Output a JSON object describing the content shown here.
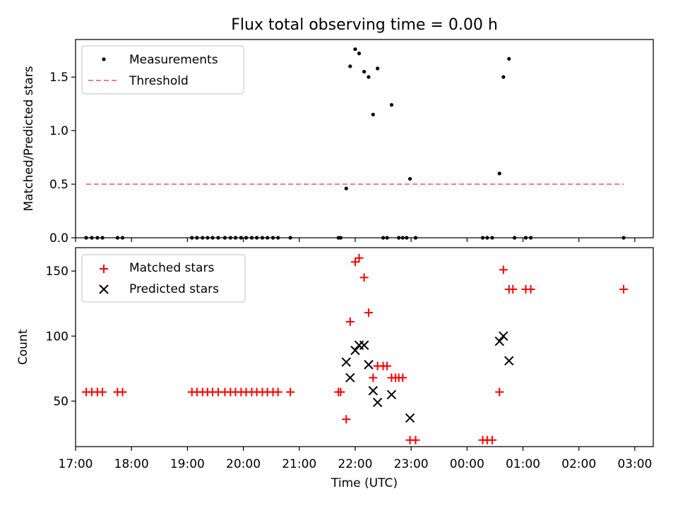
{
  "chart_data": [
    {
      "type": "scatter",
      "title": "Flux total observing time = 0.00 h",
      "ylabel": "Matched/Predicted stars",
      "xlabel": "",
      "xlim": [
        17.0,
        27.33
      ],
      "ylim": [
        0.0,
        1.85
      ],
      "yticks": [
        0.0,
        0.5,
        1.0,
        1.5
      ],
      "ytick_labels": [
        "0.0",
        "0.5",
        "1.0",
        "1.5"
      ],
      "legend_position": "upper-left",
      "series": [
        {
          "name": "Measurements",
          "style": "point",
          "color": "#000000",
          "points": [
            [
              17.19,
              0
            ],
            [
              17.29,
              0
            ],
            [
              17.39,
              0
            ],
            [
              17.48,
              0
            ],
            [
              17.75,
              0
            ],
            [
              17.84,
              0
            ],
            [
              19.08,
              0
            ],
            [
              19.17,
              0
            ],
            [
              19.27,
              0
            ],
            [
              19.36,
              0
            ],
            [
              19.45,
              0
            ],
            [
              19.55,
              0
            ],
            [
              19.67,
              0
            ],
            [
              19.77,
              0
            ],
            [
              19.86,
              0
            ],
            [
              19.96,
              0
            ],
            [
              20.05,
              0
            ],
            [
              20.15,
              0
            ],
            [
              20.24,
              0
            ],
            [
              20.34,
              0
            ],
            [
              20.43,
              0
            ],
            [
              20.53,
              0
            ],
            [
              20.62,
              0
            ],
            [
              20.84,
              0
            ],
            [
              21.7,
              0
            ],
            [
              21.74,
              0
            ],
            [
              21.84,
              0.46
            ],
            [
              21.91,
              1.6
            ],
            [
              22.0,
              1.76
            ],
            [
              22.07,
              1.72
            ],
            [
              22.16,
              1.55
            ],
            [
              22.24,
              1.5
            ],
            [
              22.32,
              1.15
            ],
            [
              22.4,
              1.58
            ],
            [
              22.65,
              1.24
            ],
            [
              22.5,
              0
            ],
            [
              22.57,
              0
            ],
            [
              22.78,
              0
            ],
            [
              22.85,
              0
            ],
            [
              22.92,
              0
            ],
            [
              22.98,
              0.55
            ],
            [
              23.08,
              0
            ],
            [
              24.28,
              0
            ],
            [
              24.36,
              0
            ],
            [
              24.45,
              0
            ],
            [
              24.58,
              0.6
            ],
            [
              24.65,
              1.5
            ],
            [
              24.75,
              1.67
            ],
            [
              24.85,
              0
            ],
            [
              25.05,
              0
            ],
            [
              25.14,
              0
            ],
            [
              26.8,
              0
            ]
          ]
        },
        {
          "name": "Threshold",
          "style": "dashed-line",
          "color": "#f08080",
          "x": [
            17.19,
            26.8
          ],
          "y": [
            0.5,
            0.5
          ]
        }
      ]
    },
    {
      "type": "scatter",
      "title": "",
      "ylabel": "Count",
      "xlabel": "Time (UTC)",
      "xlim": [
        17.0,
        27.33
      ],
      "ylim": [
        15,
        168
      ],
      "yticks": [
        50,
        100,
        150
      ],
      "ytick_labels": [
        "50",
        "100",
        "150"
      ],
      "xticks": [
        17,
        18,
        19,
        20,
        21,
        22,
        23,
        24,
        25,
        26,
        27
      ],
      "xtick_labels": [
        "17:00",
        "18:00",
        "19:00",
        "20:00",
        "21:00",
        "22:00",
        "23:00",
        "00:00",
        "01:00",
        "02:00",
        "03:00"
      ],
      "legend_position": "upper-left",
      "series": [
        {
          "name": "Matched stars",
          "style": "plus",
          "color": "#ff0000",
          "points": [
            [
              17.19,
              57
            ],
            [
              17.29,
              57
            ],
            [
              17.39,
              57
            ],
            [
              17.48,
              57
            ],
            [
              17.75,
              57
            ],
            [
              17.84,
              57
            ],
            [
              19.08,
              57
            ],
            [
              19.17,
              57
            ],
            [
              19.27,
              57
            ],
            [
              19.36,
              57
            ],
            [
              19.45,
              57
            ],
            [
              19.55,
              57
            ],
            [
              19.67,
              57
            ],
            [
              19.77,
              57
            ],
            [
              19.86,
              57
            ],
            [
              19.96,
              57
            ],
            [
              20.05,
              57
            ],
            [
              20.15,
              57
            ],
            [
              20.24,
              57
            ],
            [
              20.34,
              57
            ],
            [
              20.43,
              57
            ],
            [
              20.53,
              57
            ],
            [
              20.62,
              57
            ],
            [
              20.84,
              57
            ],
            [
              21.7,
              57
            ],
            [
              21.74,
              57
            ],
            [
              21.84,
              36
            ],
            [
              21.91,
              111
            ],
            [
              22.0,
              157
            ],
            [
              22.07,
              160
            ],
            [
              22.16,
              145
            ],
            [
              22.24,
              118
            ],
            [
              22.32,
              68
            ],
            [
              22.4,
              77
            ],
            [
              22.5,
              77
            ],
            [
              22.57,
              77
            ],
            [
              22.65,
              68
            ],
            [
              22.72,
              68
            ],
            [
              22.78,
              68
            ],
            [
              22.85,
              68
            ],
            [
              22.98,
              20
            ],
            [
              23.08,
              20
            ],
            [
              24.28,
              20
            ],
            [
              24.36,
              20
            ],
            [
              24.45,
              20
            ],
            [
              24.58,
              57
            ],
            [
              24.65,
              151
            ],
            [
              24.75,
              136
            ],
            [
              24.82,
              136
            ],
            [
              25.05,
              136
            ],
            [
              25.14,
              136
            ],
            [
              26.8,
              136
            ]
          ]
        },
        {
          "name": "Predicted stars",
          "style": "x",
          "color": "#000000",
          "points": [
            [
              21.84,
              80
            ],
            [
              21.91,
              68
            ],
            [
              22.0,
              89
            ],
            [
              22.07,
              93
            ],
            [
              22.16,
              93
            ],
            [
              22.24,
              78
            ],
            [
              22.32,
              58
            ],
            [
              22.4,
              49
            ],
            [
              22.65,
              55
            ],
            [
              22.98,
              37
            ],
            [
              24.58,
              96
            ],
            [
              24.65,
              100
            ],
            [
              24.75,
              81
            ]
          ]
        }
      ]
    }
  ]
}
